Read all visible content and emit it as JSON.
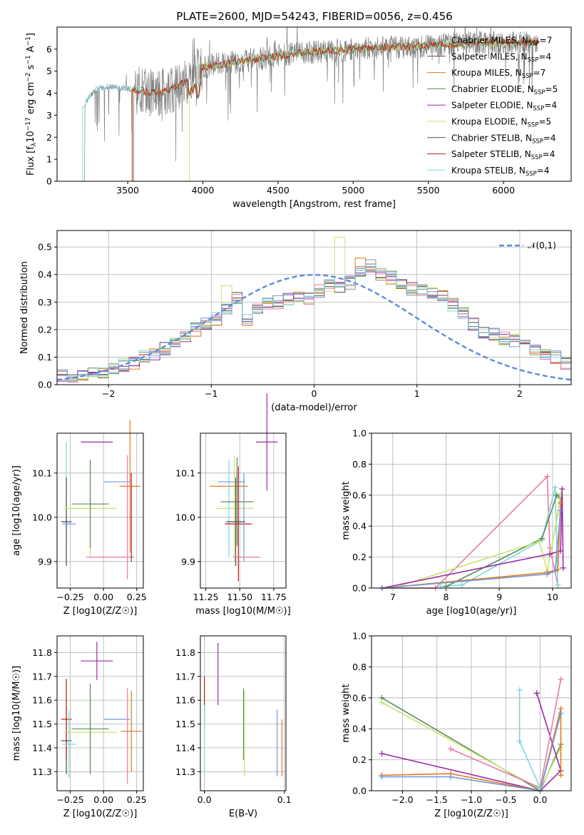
{
  "title": "PLATE=2600, MJD=54243, FIBERID=0056, z=0.456",
  "colors": {
    "chabrier_miles": "#8c8c8c",
    "salpeter_miles": "#4a4a4a",
    "kroupa_miles": "#e07b20",
    "chabrier_elodie": "#5a8a5a",
    "salpeter_elodie": "#9b2aa6",
    "kroupa_elodie": "#c8e36c",
    "chabrier_stelib": "#555555",
    "salpeter_stelib": "#c01818",
    "kroupa_stelib": "#7fd6d6",
    "pink": "#e87aa8",
    "blue": "#6f96dd"
  },
  "chart_data": [
    {
      "type": "line",
      "title": "PLATE=2600, MJD=54243, FIBERID=0056, z=0.456",
      "xlabel": "wavelength [Angstrom, rest frame]",
      "ylabel": "Flux [f_λ 10^-17 erg cm^-2 s^-1 A^-1]",
      "xlim": [
        3030,
        6450
      ],
      "ylim": [
        0,
        7
      ],
      "xticks": [
        "3500",
        "4000",
        "4500",
        "5000",
        "5500",
        "6000"
      ],
      "yticks": [
        "0",
        "1",
        "2",
        "3",
        "4",
        "5",
        "6"
      ],
      "legend_position": "right",
      "legend": [
        "Chabrier MILES, N_SSP=7",
        "Salpeter MILES, N_SSP=4",
        "Kroupa MILES, N_SSP=7",
        "Chabrier ELODIE, N_SSP=5",
        "Salpeter ELODIE, N_SSP=4",
        "Kroupa ELODIE, N_SSP=5",
        "Chabrier STELIB, N_SSP=4",
        "Salpeter STELIB, N_SSP=4",
        "Kroupa STELIB, N_SSP=4"
      ],
      "continuum": [
        {
          "x": 3200,
          "y": 3.3
        },
        {
          "x": 3250,
          "y": 3.9
        },
        {
          "x": 3300,
          "y": 4.2
        },
        {
          "x": 3400,
          "y": 4.3
        },
        {
          "x": 3500,
          "y": 4.2
        },
        {
          "x": 3600,
          "y": 4.1
        },
        {
          "x": 3700,
          "y": 4.0
        },
        {
          "x": 3800,
          "y": 4.2
        },
        {
          "x": 3900,
          "y": 4.6
        },
        {
          "x": 4000,
          "y": 5.2
        },
        {
          "x": 4200,
          "y": 5.4
        },
        {
          "x": 4400,
          "y": 5.6
        },
        {
          "x": 4600,
          "y": 5.8
        },
        {
          "x": 4800,
          "y": 5.9
        },
        {
          "x": 5000,
          "y": 6.0
        },
        {
          "x": 5200,
          "y": 6.1
        },
        {
          "x": 5400,
          "y": 6.1
        },
        {
          "x": 5600,
          "y": 6.2
        },
        {
          "x": 5800,
          "y": 6.3
        },
        {
          "x": 6000,
          "y": 6.3
        },
        {
          "x": 6200,
          "y": 6.3
        }
      ]
    },
    {
      "type": "histogram",
      "xlabel": "(data-model)/error",
      "ylabel": "Normed distribution",
      "xlim": [
        -2.5,
        2.5
      ],
      "ylim": [
        0,
        0.56
      ],
      "xticks": [
        "−2",
        "−1",
        "0",
        "1",
        "2"
      ],
      "yticks": [
        "0.0",
        "0.1",
        "0.2",
        "0.3",
        "0.4",
        "0.5"
      ],
      "grid": true,
      "legend": [
        "𝒩(0,1)"
      ],
      "legend_position": "top-right",
      "bin_width": 0.1,
      "bin_start": -2.5,
      "values": [
        0.03,
        0.03,
        0.03,
        0.04,
        0.04,
        0.06,
        0.07,
        0.08,
        0.1,
        0.11,
        0.13,
        0.15,
        0.18,
        0.2,
        0.22,
        0.24,
        0.28,
        0.31,
        0.24,
        0.27,
        0.29,
        0.3,
        0.31,
        0.32,
        0.31,
        0.34,
        0.36,
        0.35,
        0.37,
        0.41,
        0.43,
        0.4,
        0.39,
        0.36,
        0.35,
        0.34,
        0.33,
        0.32,
        0.29,
        0.26,
        0.22,
        0.19,
        0.18,
        0.17,
        0.16,
        0.14,
        0.13,
        0.11,
        0.1,
        0.08
      ]
    },
    {
      "type": "errorbar",
      "xlabel": "Z [log10(Z/Z☉)]",
      "ylabel": "age  [log10(age/yr)]",
      "xlim": [
        -0.35,
        0.3
      ],
      "ylim": [
        9.84,
        10.19
      ],
      "xticks": [
        "−0.25",
        "0.00",
        "0.25"
      ],
      "yticks": [
        "9.9",
        "10.0",
        "10.1"
      ],
      "grid": true,
      "points": [
        {
          "x": -0.28,
          "y": 10.05,
          "xerr": 0.0,
          "yerr": 0.12,
          "c": "kroupa_stelib"
        },
        {
          "x": -0.28,
          "y": 9.99,
          "xerr": 0.04,
          "yerr": 0.1,
          "c": "salpeter_miles"
        },
        {
          "x": -0.26,
          "y": 9.985,
          "xerr": 0.05,
          "yerr": 0.0,
          "c": "blue"
        },
        {
          "x": -0.1,
          "y": 10.02,
          "xerr": 0.2,
          "yerr": 0.11,
          "c": "kroupa_elodie"
        },
        {
          "x": -0.1,
          "y": 10.03,
          "xerr": 0.14,
          "yerr": 0.1,
          "c": "chabrier_elodie"
        },
        {
          "x": -0.05,
          "y": 10.17,
          "xerr": 0.12,
          "yerr": 0.0,
          "c": "salpeter_elodie"
        },
        {
          "x": 0.05,
          "y": 9.91,
          "xerr": 0.18,
          "yerr": 0.0,
          "c": "pink"
        },
        {
          "x": 0.1,
          "y": 10.08,
          "xerr": 0.1,
          "yerr": 0.0,
          "c": "blue"
        },
        {
          "x": 0.18,
          "y": 10.0,
          "xerr": 0.0,
          "yerr": 0.14,
          "c": "pink"
        },
        {
          "x": 0.2,
          "y": 10.07,
          "xerr": 0.08,
          "yerr": 0.15,
          "c": "kroupa_miles"
        },
        {
          "x": 0.21,
          "y": 10.0,
          "xerr": 0.0,
          "yerr": 0.1,
          "c": "salpeter_stelib"
        }
      ]
    },
    {
      "type": "errorbar",
      "xlabel": "mass [log10(M/M☉)]",
      "ylabel": "",
      "xlim": [
        11.21,
        11.84
      ],
      "ylim": [
        9.84,
        10.19
      ],
      "xticks": [
        "11.25",
        "11.50",
        "11.75"
      ],
      "yticks": [
        "9.9",
        "10.0",
        "10.1"
      ],
      "grid": true,
      "points": [
        {
          "x": 11.42,
          "y": 10.07,
          "xerr": 0.14,
          "yerr": 0.0,
          "c": "kroupa_miles"
        },
        {
          "x": 11.42,
          "y": 10.02,
          "xerr": 0.05,
          "yerr": 0.11,
          "c": "kroupa_stelib"
        },
        {
          "x": 11.44,
          "y": 10.08,
          "xerr": 0.1,
          "yerr": 0.0,
          "c": "blue"
        },
        {
          "x": 11.46,
          "y": 10.02,
          "xerr": 0.14,
          "yerr": 0.12,
          "c": "kroupa_elodie"
        },
        {
          "x": 11.48,
          "y": 10.035,
          "xerr": 0.12,
          "yerr": 0.1,
          "c": "chabrier_elodie"
        },
        {
          "x": 11.49,
          "y": 9.985,
          "xerr": 0.1,
          "yerr": 0.13,
          "c": "salpeter_stelib"
        },
        {
          "x": 11.47,
          "y": 9.99,
          "xerr": 0.07,
          "yerr": 0.1,
          "c": "salpeter_miles"
        },
        {
          "x": 11.55,
          "y": 9.91,
          "xerr": 0.1,
          "yerr": 0.0,
          "c": "pink"
        },
        {
          "x": 11.53,
          "y": 10.0,
          "xerr": 0.0,
          "yerr": 0.1,
          "c": "blue"
        },
        {
          "x": 11.7,
          "y": 10.17,
          "xerr": 0.08,
          "yerr": 0.11,
          "c": "salpeter_elodie"
        }
      ]
    },
    {
      "type": "line",
      "xlabel": "age  [log10(age/yr)]",
      "ylabel": "mass weight",
      "xlim": [
        6.6,
        10.35
      ],
      "ylim": [
        0,
        1
      ],
      "xticks": [
        "7",
        "8",
        "9",
        "10"
      ],
      "yticks": [
        "0.0",
        "0.2",
        "0.4",
        "0.6",
        "0.8",
        "1.0"
      ],
      "grid": true,
      "series": [
        {
          "c": "pink",
          "x": [
            6.8,
            7.8,
            9.9,
            9.95,
            10.1
          ],
          "y": [
            0.0,
            0.0,
            0.72,
            0.26,
            0.02
          ]
        },
        {
          "c": "kroupa_stelib",
          "x": [
            7.9,
            8.3,
            9.8,
            10.05,
            10.1
          ],
          "y": [
            0.01,
            0.02,
            0.31,
            0.65,
            0.02
          ]
        },
        {
          "c": "chabrier_elodie",
          "x": [
            8.0,
            9.8,
            10.08,
            10.15
          ],
          "y": [
            0.01,
            0.32,
            0.6,
            0.58
          ]
        },
        {
          "c": "kroupa_elodie",
          "x": [
            6.8,
            7.0,
            9.75,
            9.9,
            10.1,
            10.15
          ],
          "y": [
            0.0,
            0.0,
            0.3,
            0.11,
            0.48,
            0.61
          ]
        },
        {
          "c": "salpeter_elodie",
          "x": [
            6.8,
            9.95,
            10.15,
            10.18,
            10.2
          ],
          "y": [
            0.0,
            0.22,
            0.24,
            0.64,
            0.13
          ]
        },
        {
          "c": "kroupa_miles",
          "x": [
            6.8,
            9.9,
            10.1,
            10.15
          ],
          "y": [
            0.0,
            0.1,
            0.12,
            0.55
          ]
        },
        {
          "c": "blue",
          "x": [
            6.8,
            9.9,
            10.05,
            10.15
          ],
          "y": [
            0.0,
            0.09,
            0.11,
            0.5
          ]
        }
      ]
    },
    {
      "type": "errorbar",
      "xlabel": "Z [log10(Z/Z☉)]",
      "ylabel": "mass [log10(M/M☉)]",
      "xlim": [
        -0.35,
        0.3
      ],
      "ylim": [
        11.22,
        11.87
      ],
      "xticks": [
        "−0.25",
        "0.00",
        "0.25"
      ],
      "yticks": [
        "11.3",
        "11.4",
        "11.5",
        "11.6",
        "11.7",
        "11.8"
      ],
      "grid": true,
      "points": [
        {
          "x": -0.28,
          "y": 11.43,
          "xerr": 0.04,
          "yerr": 0.14,
          "c": "salpeter_miles"
        },
        {
          "x": -0.28,
          "y": 11.52,
          "xerr": 0.04,
          "yerr": 0.17,
          "c": "salpeter_stelib"
        },
        {
          "x": -0.26,
          "y": 11.415,
          "xerr": 0.05,
          "yerr": 0.14,
          "c": "kroupa_stelib"
        },
        {
          "x": -0.1,
          "y": 11.465,
          "xerr": 0.2,
          "yerr": 0.17,
          "c": "kroupa_elodie"
        },
        {
          "x": -0.1,
          "y": 11.48,
          "xerr": 0.14,
          "yerr": 0.19,
          "c": "chabrier_elodie"
        },
        {
          "x": -0.05,
          "y": 11.765,
          "xerr": 0.12,
          "yerr": 0.08,
          "c": "salpeter_elodie"
        },
        {
          "x": 0.1,
          "y": 11.52,
          "xerr": 0.1,
          "yerr": 0.0,
          "c": "blue"
        },
        {
          "x": 0.18,
          "y": 11.45,
          "xerr": 0.0,
          "yerr": 0.2,
          "c": "pink"
        },
        {
          "x": 0.21,
          "y": 11.47,
          "xerr": 0.08,
          "yerr": 0.17,
          "c": "kroupa_miles"
        }
      ]
    },
    {
      "type": "errorbar",
      "xlabel": "E(B-V)",
      "ylabel": "",
      "xlim": [
        -0.005,
        0.102
      ],
      "ylim": [
        11.22,
        11.87
      ],
      "xticks": [
        "0.0",
        "0.1"
      ],
      "yticks": [
        "11.3",
        "11.4",
        "11.5",
        "11.6",
        "11.7",
        "11.8"
      ],
      "grid": true,
      "points": [
        {
          "x": 0.0,
          "y": 11.6,
          "xerr": 0.0,
          "yerr": 0.1,
          "c": "salpeter_stelib"
        },
        {
          "x": 0.0,
          "y": 11.43,
          "xerr": 0.0,
          "yerr": 0.15,
          "c": "kroupa_stelib"
        },
        {
          "x": 0.017,
          "y": 11.71,
          "xerr": 0.0,
          "yerr": 0.13,
          "c": "salpeter_elodie"
        },
        {
          "x": 0.049,
          "y": 11.5,
          "xerr": 0.0,
          "yerr": 0.15,
          "c": "chabrier_elodie"
        },
        {
          "x": 0.05,
          "y": 11.46,
          "xerr": 0.0,
          "yerr": 0.18,
          "c": "kroupa_elodie"
        },
        {
          "x": 0.091,
          "y": 11.42,
          "xerr": 0.0,
          "yerr": 0.14,
          "c": "blue"
        },
        {
          "x": 0.097,
          "y": 11.4,
          "xerr": 0.0,
          "yerr": 0.12,
          "c": "kroupa_miles"
        }
      ]
    },
    {
      "type": "line",
      "xlabel": "Z [log10(Z/Z☉)]",
      "ylabel": "mass weight",
      "xlim": [
        -2.45,
        0.45
      ],
      "ylim": [
        0,
        1
      ],
      "xticks": [
        "−2.0",
        "−1.5",
        "−1.0",
        "−0.5",
        "0.0"
      ],
      "yticks": [
        "0.0",
        "0.2",
        "0.4",
        "0.6",
        "0.8",
        "1.0"
      ],
      "grid": true,
      "series": [
        {
          "c": "chabrier_elodie",
          "x": [
            -2.3,
            0.0,
            0.3
          ],
          "y": [
            0.6,
            0.0,
            0.3
          ]
        },
        {
          "c": "kroupa_elodie",
          "x": [
            -2.3,
            0.0,
            0.3
          ],
          "y": [
            0.57,
            0.01,
            0.28
          ]
        },
        {
          "c": "salpeter_elodie",
          "x": [
            -2.3,
            0.0,
            0.3,
            -0.05
          ],
          "y": [
            0.24,
            0.0,
            0.13,
            0.63
          ]
        },
        {
          "c": "pink",
          "x": [
            -1.3,
            0.0,
            0.3
          ],
          "y": [
            0.27,
            0.02,
            0.72
          ]
        },
        {
          "c": "kroupa_miles",
          "x": [
            -2.3,
            -1.3,
            0.0,
            0.3,
            0.3
          ],
          "y": [
            0.1,
            0.11,
            0.0,
            0.53,
            0.1
          ]
        },
        {
          "c": "blue",
          "x": [
            -2.3,
            -1.3,
            0.0,
            0.3
          ],
          "y": [
            0.09,
            0.09,
            0.0,
            0.5
          ]
        },
        {
          "c": "kroupa_stelib",
          "x": [
            -0.3,
            -0.3,
            0.0
          ],
          "y": [
            0.65,
            0.32,
            0.02
          ]
        }
      ]
    }
  ]
}
